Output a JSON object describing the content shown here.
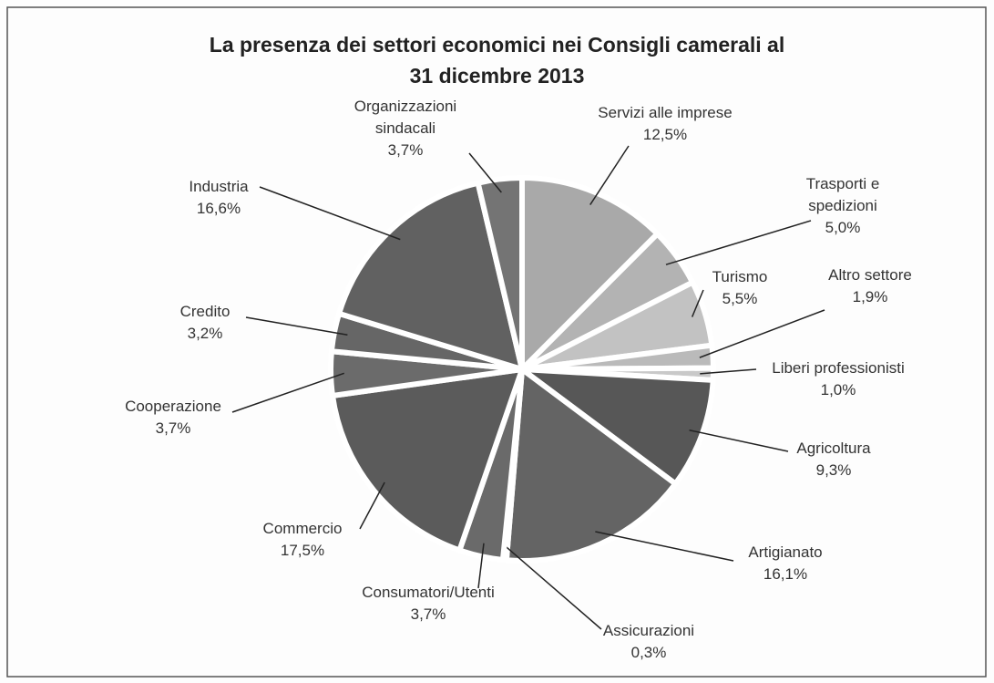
{
  "chart_data": {
    "type": "pie",
    "title": "La presenza dei settori economici nei Consigli camerali al 31 dicembre 2013",
    "categories": [
      "Servizi alle imprese",
      "Trasporti e spedizioni",
      "Turismo",
      "Altro settore",
      "Liberi professionisti",
      "Agricoltura",
      "Artigianato",
      "Assicurazioni",
      "Consumatori/Utenti",
      "Commercio",
      "Cooperazione",
      "Credito",
      "Industria",
      "Organizzazioni sindacali"
    ],
    "values": [
      12.5,
      5.0,
      5.5,
      1.9,
      1.0,
      9.3,
      16.1,
      0.3,
      3.7,
      17.5,
      3.7,
      3.2,
      16.6,
      3.7
    ],
    "value_labels": [
      "12,5%",
      "5,0%",
      "5,5%",
      "1,9%",
      "1,0%",
      "9,3%",
      "16,1%",
      "0,3%",
      "3,7%",
      "17,5%",
      "3,7%",
      "3,2%",
      "16,6%",
      "3,7%"
    ],
    "colors": [
      "#a9a9a9",
      "#b3b3b3",
      "#c2c2c2",
      "#bababa",
      "#c9c9c9",
      "#575757",
      "#646464",
      "#7a7a7a",
      "#6a6a6a",
      "#5b5b5b",
      "#6b6b6b",
      "#666666",
      "#616161",
      "#747474"
    ]
  }
}
